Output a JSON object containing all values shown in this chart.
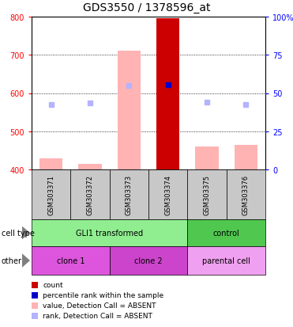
{
  "title": "GDS3550 / 1378596_at",
  "samples": [
    "GSM303371",
    "GSM303372",
    "GSM303373",
    "GSM303374",
    "GSM303375",
    "GSM303376"
  ],
  "ylim": [
    400,
    800
  ],
  "yticks_left": [
    400,
    500,
    600,
    700,
    800
  ],
  "yticks_right": [
    0,
    25,
    50,
    75,
    100
  ],
  "bar_values": [
    430,
    415,
    710,
    795,
    460,
    465
  ],
  "bar_colors": [
    "#ffb3b3",
    "#ffb3b3",
    "#ffb3b3",
    "#cc0000",
    "#ffb3b3",
    "#ffb3b3"
  ],
  "bar_width": 0.6,
  "dot_values": [
    570,
    575,
    620,
    622,
    577,
    570
  ],
  "dot_colors_absent": [
    "#b3b3ff",
    "#b3b3ff",
    "#b3b3ff",
    null,
    "#b3b3ff",
    "#b3b3ff"
  ],
  "dot_dark_idx": 3,
  "dot_dark_color": "#0000cc",
  "dot_dark_value": 622,
  "cell_type_groups": [
    {
      "label": "GLI1 transformed",
      "start": 0,
      "end": 3,
      "color": "#90ee90"
    },
    {
      "label": "control",
      "start": 4,
      "end": 5,
      "color": "#50c850"
    }
  ],
  "other_groups": [
    {
      "label": "clone 1",
      "start": 0,
      "end": 1,
      "color": "#dd55dd"
    },
    {
      "label": "clone 2",
      "start": 2,
      "end": 3,
      "color": "#cc44cc"
    },
    {
      "label": "parental cell",
      "start": 4,
      "end": 5,
      "color": "#f0a0f0"
    }
  ],
  "legend_items": [
    {
      "color": "#cc0000",
      "label": "count"
    },
    {
      "color": "#0000cc",
      "label": "percentile rank within the sample"
    },
    {
      "color": "#ffb3b3",
      "label": "value, Detection Call = ABSENT"
    },
    {
      "color": "#b3b3ff",
      "label": "rank, Detection Call = ABSENT"
    }
  ],
  "title_fontsize": 10,
  "tick_fontsize": 7,
  "label_fontsize": 7,
  "sample_fontsize": 6
}
